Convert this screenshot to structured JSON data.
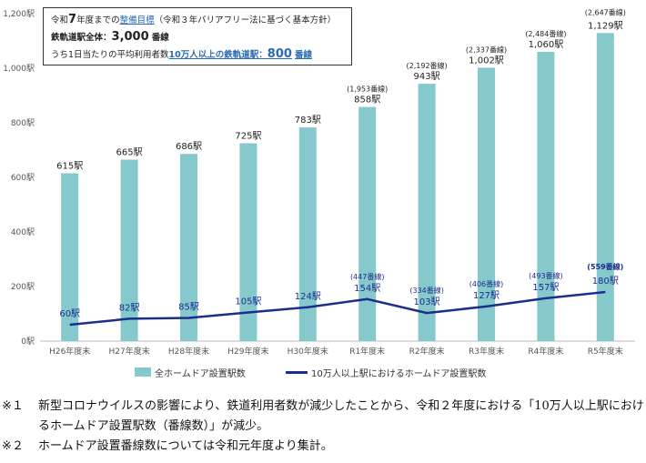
{
  "chart_data": {
    "type": "bar+line",
    "categories": [
      "H26年度末",
      "H27年度末",
      "H28年度末",
      "H29年度末",
      "H30年度末",
      "R1年度末",
      "R2年度末",
      "R3年度末",
      "R4年度末",
      "R5年度末"
    ],
    "series": [
      {
        "name": "全ホームドア設置駅数",
        "type": "bar",
        "color": "#86c9cd",
        "values": [
          615,
          665,
          686,
          725,
          783,
          858,
          943,
          1002,
          1060,
          1129
        ],
        "labels": [
          "615駅",
          "665駅",
          "686駅",
          "725駅",
          "783駅",
          "858駅",
          "943駅",
          "1,002駅",
          "1,060駅",
          "1,129駅"
        ],
        "sub_labels": [
          "",
          "",
          "",
          "",
          "",
          "(1,953番線)",
          "(2,192番線)",
          "(2,337番線)",
          "(2,484番線)",
          "(2,647番線)"
        ]
      },
      {
        "name": "10万人以上駅におけるホームドア設置駅数",
        "type": "line",
        "color": "#1c2e8c",
        "values": [
          60,
          82,
          85,
          105,
          124,
          154,
          103,
          127,
          157,
          180
        ],
        "labels": [
          "60駅",
          "82駅",
          "85駅",
          "105駅",
          "124駅",
          "154駅",
          "103駅",
          "127駅",
          "157駅",
          "180駅"
        ],
        "sub_labels": [
          "",
          "",
          "",
          "",
          "",
          "(447番線)",
          "(334番線)",
          "(406番線)",
          "(493番線)",
          "(559番線)"
        ]
      }
    ],
    "ylim": [
      0,
      1200
    ],
    "yticks": [
      0,
      200,
      400,
      600,
      800,
      1000,
      1200
    ],
    "ytick_labels": [
      "0駅",
      "200駅",
      "400駅",
      "600駅",
      "800駅",
      "1,000駅",
      "1,200駅"
    ],
    "legend": "bottom"
  },
  "target_box": {
    "line1_pre": "令和",
    "line1_num": "7",
    "line1_mid": "年度までの",
    "line1_link": "整備目標",
    "line1_post": "（令和３年バリアフリー法に基づく基本方針）",
    "line2_pre": "鉄軌道駅全体",
    "line2_colon": "：",
    "line2_num": "3,000",
    "line2_post": "番線",
    "line3_pre": "うち1日当たりの平均利用者数",
    "line3_link": "10万人以上の鉄軌道駅",
    "line3_colon": "：",
    "line3_num": "800",
    "line3_post": "番線"
  },
  "notes": [
    {
      "mark": "※１",
      "text": "新型コロナウイルスの影響により、鉄道利用者数が減少したことから、令和２年度における「10万人以上駅におけるホームドア設置駅数（番線数）」が減少。"
    },
    {
      "mark": "※２",
      "text": "ホームドア設置番線数については令和元年度より集計。"
    }
  ],
  "colors": {
    "bar": "#86c9cd",
    "line": "#1c2e8c",
    "link": "#2a6ab5"
  }
}
